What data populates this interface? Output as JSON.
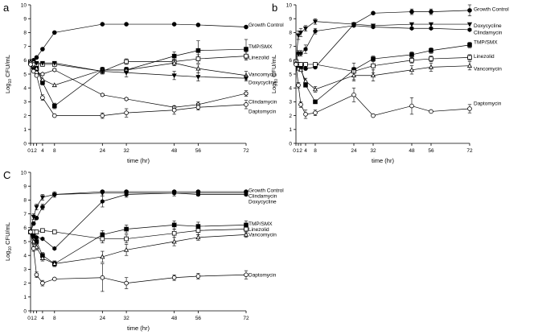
{
  "chart_data": [
    {
      "type": "line",
      "panel": "a",
      "title": "",
      "xlabel": "time (hr)",
      "ylabel": "Log10 CFU/mL",
      "ylabel_main": "Log",
      "ylabel_sub": "10",
      "ylabel_rest": " CFU/mL",
      "xlim": [
        0,
        72
      ],
      "ylim": [
        0,
        10
      ],
      "x_ticks": [
        0,
        1,
        2,
        4,
        8,
        24,
        32,
        48,
        56,
        72
      ],
      "x_tick_labels": [
        "0",
        "1",
        "2",
        "4",
        "8",
        "24",
        "32",
        "48",
        "56",
        "72"
      ],
      "y_ticks": [
        0,
        1,
        2,
        3,
        4,
        5,
        6,
        7,
        8,
        9,
        10
      ],
      "x": [
        0,
        1,
        2,
        4,
        8,
        24,
        32,
        48,
        56,
        72
      ],
      "series": [
        {
          "name": "Growth Control",
          "marker": "filled-circle",
          "values": [
            5.9,
            6.0,
            6.2,
            6.8,
            8.0,
            8.6,
            8.6,
            8.6,
            8.55,
            8.4
          ],
          "err": [
            0,
            0,
            0,
            0,
            0,
            0,
            0,
            0.1,
            0.1,
            0.1
          ],
          "label_y": 8.55
        },
        {
          "name": "TMP/SMX",
          "marker": "filled-square",
          "values": [
            5.8,
            5.5,
            5.4,
            4.4,
            2.7,
            5.3,
            5.3,
            6.3,
            6.7,
            6.8
          ],
          "err": [
            0,
            0,
            0,
            0.2,
            0.2,
            0.2,
            0.2,
            0.3,
            0.7,
            0.7
          ],
          "label_y": 7.0
        },
        {
          "name": "Linezolid",
          "marker": "open-square",
          "values": [
            5.9,
            5.8,
            5.7,
            5.7,
            5.7,
            5.2,
            5.9,
            5.9,
            6.1,
            6.3
          ],
          "err": [
            0,
            0,
            0,
            0,
            0.1,
            0.1,
            0.2,
            0.3,
            0.3,
            0.3
          ],
          "label_y": 6.2
        },
        {
          "name": "Vancomycin",
          "marker": "open-triangle",
          "values": [
            5.9,
            5.6,
            5.4,
            4.6,
            4.2,
            5.3,
            5.3,
            5.8,
            5.4,
            4.9
          ],
          "err": [
            0,
            0,
            0,
            0.1,
            0.1,
            0.2,
            0.2,
            0.2,
            0.3,
            0.3
          ],
          "label_y": 5.0
        },
        {
          "name": "Doxycycline",
          "marker": "filled-triangle-down",
          "values": [
            5.8,
            5.7,
            5.8,
            5.8,
            5.8,
            5.2,
            5.1,
            4.9,
            4.8,
            4.7
          ],
          "err": [
            0,
            0,
            0,
            0.1,
            0.1,
            0.2,
            0.3,
            0.3,
            0.3,
            0.2
          ],
          "label_y": 4.4
        },
        {
          "name": "Clindamycin",
          "marker": "open-hexagon",
          "values": [
            5.8,
            5.7,
            5.1,
            5.0,
            5.3,
            3.5,
            3.2,
            2.6,
            2.8,
            3.6
          ],
          "err": [
            0,
            0,
            0,
            0.1,
            0.1,
            0.1,
            0.1,
            0.1,
            0.2,
            0.2
          ],
          "label_y": 3.0
        },
        {
          "name": "Daptomycin",
          "marker": "open-circle",
          "values": [
            5.7,
            5.2,
            4.9,
            3.3,
            2.0,
            2.0,
            2.2,
            2.4,
            2.6,
            2.8
          ],
          "err": [
            0,
            0,
            0,
            0.2,
            0.1,
            0.2,
            0.3,
            0.3,
            0.2,
            0.3
          ],
          "label_y": 2.3
        }
      ]
    },
    {
      "type": "line",
      "panel": "b",
      "title": "",
      "xlabel": "time (hr)",
      "ylabel": "Log10 CFU/mL",
      "ylabel_main": "Log",
      "ylabel_sub": "10",
      "ylabel_rest": " CFU/mL",
      "xlim": [
        0,
        72
      ],
      "ylim": [
        0,
        10
      ],
      "x_ticks": [
        0,
        1,
        2,
        4,
        8,
        24,
        32,
        48,
        56,
        72
      ],
      "x_tick_labels": [
        "0",
        "1",
        "2",
        "4",
        "8",
        "24",
        "32",
        "48",
        "56",
        "72"
      ],
      "y_ticks": [
        0,
        1,
        2,
        3,
        4,
        5,
        6,
        7,
        8,
        9,
        10
      ],
      "x": [
        0,
        1,
        2,
        4,
        8,
        24,
        32,
        48,
        56,
        72
      ],
      "series": [
        {
          "name": "Growth Control",
          "marker": "filled-circle",
          "values": [
            5.8,
            5.7,
            5.6,
            5.4,
            5.5,
            8.6,
            9.4,
            9.5,
            9.5,
            9.6
          ],
          "err": [
            0,
            0,
            0,
            0,
            0,
            0,
            0,
            0.2,
            0.2,
            0.4
          ],
          "label_y": 9.7
        },
        {
          "name": "Doxycycline",
          "marker": "filled-triangle-down",
          "values": [
            5.9,
            7.8,
            8.0,
            8.3,
            8.8,
            8.6,
            8.5,
            8.6,
            8.6,
            8.6
          ],
          "err": [
            0,
            0.3,
            0.3,
            0.2,
            0.2,
            0.1,
            0.1,
            0.1,
            0.1,
            0.1
          ],
          "label_y": 8.5
        },
        {
          "name": "Clindamycin",
          "marker": "filled-hexagon",
          "values": [
            5.8,
            6.5,
            6.5,
            6.8,
            8.1,
            8.5,
            8.4,
            8.3,
            8.3,
            8.2
          ],
          "err": [
            0,
            0.2,
            0.2,
            0.3,
            0.2,
            0.1,
            0.1,
            0.1,
            0.1,
            0.1
          ],
          "label_y": 8.0
        },
        {
          "name": "TMP/SMX",
          "marker": "filled-square",
          "values": [
            5.9,
            5.6,
            5.5,
            4.2,
            3.0,
            5.3,
            6.1,
            6.4,
            6.7,
            7.1
          ],
          "err": [
            0,
            0,
            0,
            0.1,
            0.1,
            0.2,
            0.2,
            0.2,
            0.2,
            0.2
          ],
          "label_y": 7.3
        },
        {
          "name": "Linezolid",
          "marker": "open-square",
          "values": [
            5.9,
            5.7,
            5.7,
            5.7,
            5.7,
            5.2,
            5.6,
            6.0,
            6.1,
            6.2
          ],
          "err": [
            0,
            0,
            0,
            0.1,
            0.1,
            0.6,
            0.5,
            0.2,
            0.2,
            0.2
          ],
          "label_y": 6.3
        },
        {
          "name": "Vancomycin",
          "marker": "open-triangle",
          "values": [
            5.8,
            5.4,
            5.3,
            4.5,
            3.9,
            4.9,
            4.9,
            5.3,
            5.5,
            5.6
          ],
          "err": [
            0,
            0,
            0,
            0.2,
            0.2,
            0.4,
            0.4,
            0.3,
            0.3,
            0.3
          ],
          "label_y": 5.4
        },
        {
          "name": "Daptomycin",
          "marker": "open-circle",
          "values": [
            5.7,
            4.2,
            2.8,
            2.1,
            2.2,
            3.5,
            2.0,
            2.7,
            2.3,
            2.5
          ],
          "err": [
            0,
            0.2,
            0.2,
            0.3,
            0.2,
            0.5,
            0.1,
            0.6,
            0.1,
            0.3
          ],
          "label_y": 2.9
        }
      ]
    },
    {
      "type": "line",
      "panel": "C",
      "title": "",
      "xlabel": "time (hr)",
      "ylabel": "Log10 CFU/mL",
      "ylabel_main": "Log",
      "ylabel_sub": "10",
      "ylabel_rest": " CFU/mL",
      "xlim": [
        0,
        72
      ],
      "ylim": [
        0,
        10
      ],
      "x_ticks": [
        0,
        1,
        2,
        4,
        8,
        24,
        32,
        48,
        56,
        72
      ],
      "x_tick_labels": [
        "0",
        "1",
        "2",
        "4",
        "8",
        "24",
        "32",
        "48",
        "56",
        "72"
      ],
      "y_ticks": [
        0,
        1,
        2,
        3,
        4,
        5,
        6,
        7,
        8,
        9,
        10
      ],
      "x": [
        0,
        1,
        2,
        4,
        8,
        24,
        32,
        48,
        56,
        72
      ],
      "series": [
        {
          "name": "Growth Control",
          "marker": "filled-circle",
          "values": [
            5.7,
            6.3,
            6.7,
            7.5,
            8.4,
            8.6,
            8.6,
            8.6,
            8.6,
            8.6
          ],
          "err": [
            0,
            0,
            0,
            0.2,
            0.1,
            0.1,
            0.1,
            0.1,
            0.1,
            0.1
          ],
          "label_y": 8.7
        },
        {
          "name": "Clindamycin",
          "marker": "filled-triangle-down",
          "values": [
            5.7,
            6.8,
            7.5,
            8.2,
            8.4,
            8.5,
            8.5,
            8.5,
            8.5,
            8.5
          ],
          "err": [
            0,
            0.2,
            0.2,
            0.2,
            0.2,
            0.2,
            0.2,
            0.2,
            0.2,
            0.2
          ],
          "label_y": 8.3
        },
        {
          "name": "Doxycycline",
          "marker": "filled-hexagon",
          "values": [
            5.7,
            5.5,
            5.3,
            5.2,
            4.5,
            7.9,
            8.4,
            8.5,
            8.4,
            8.4
          ],
          "err": [
            0,
            0.1,
            0.1,
            0.1,
            0.1,
            0.4,
            0.2,
            0.1,
            0.1,
            0.1
          ],
          "label_y": 7.9
        },
        {
          "name": "TMP/SMX",
          "marker": "filled-square",
          "values": [
            5.7,
            5.4,
            5.0,
            4.0,
            3.4,
            5.5,
            5.9,
            6.2,
            6.1,
            6.2
          ],
          "err": [
            0,
            0.1,
            0.1,
            0.2,
            0.2,
            0.3,
            0.3,
            0.3,
            0.3,
            0.3
          ],
          "label_y": 6.3
        },
        {
          "name": "Linezolid",
          "marker": "open-square",
          "values": [
            5.7,
            5.7,
            5.7,
            5.8,
            5.7,
            5.2,
            5.2,
            5.6,
            5.8,
            5.9
          ],
          "err": [
            0,
            0.1,
            0.1,
            0.1,
            0.1,
            0.3,
            0.3,
            0.3,
            0.3,
            0.3
          ],
          "label_y": 5.9
        },
        {
          "name": "Vancomycin",
          "marker": "open-triangle",
          "values": [
            5.7,
            5.0,
            4.6,
            3.8,
            3.4,
            3.9,
            4.4,
            5.0,
            5.3,
            5.5
          ],
          "err": [
            0,
            0.2,
            0.2,
            0.2,
            0.2,
            0.4,
            0.4,
            0.3,
            0.2,
            0.2
          ],
          "label_y": 5.5
        },
        {
          "name": "Daptomycin",
          "marker": "open-circle",
          "values": [
            5.7,
            4.5,
            2.6,
            2.0,
            2.3,
            2.4,
            2.0,
            2.4,
            2.5,
            2.6
          ],
          "err": [
            0,
            0.2,
            0.2,
            0.2,
            0.1,
            1.0,
            0.4,
            0.2,
            0.2,
            0.3
          ],
          "label_y": 2.6
        }
      ]
    }
  ]
}
